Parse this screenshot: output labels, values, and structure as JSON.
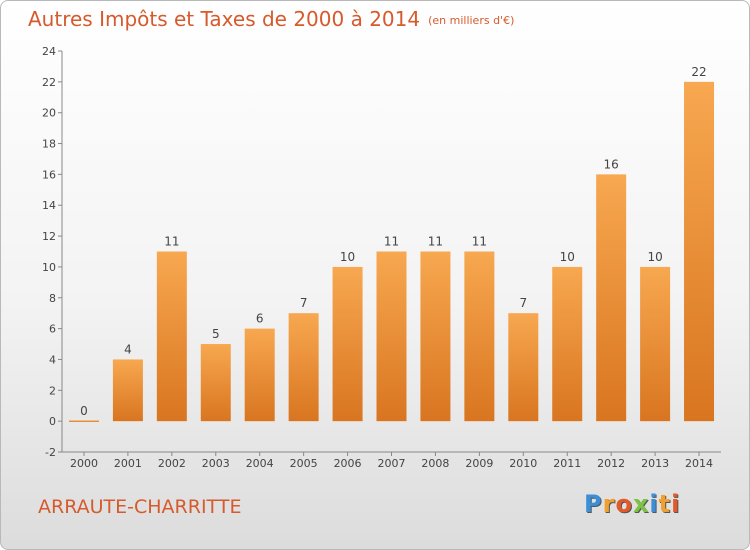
{
  "header": {
    "title": "Autres Impôts et Taxes de 2000 à 2014",
    "unit": "(en milliers d'€)"
  },
  "footer": {
    "commune": "ARRAUTE-CHARRITTE",
    "logo_letters": [
      {
        "char": "P",
        "color": "#3a8fd8"
      },
      {
        "char": "r",
        "color": "#f0a030"
      },
      {
        "char": "o",
        "color": "#e25a2a"
      },
      {
        "char": "x",
        "color": "#7dc242"
      },
      {
        "char": "i",
        "color": "#3a8fd8"
      },
      {
        "char": "t",
        "color": "#f0a030"
      },
      {
        "char": "i",
        "color": "#e25a2a"
      }
    ]
  },
  "colors": {
    "accent": "#d65a2c",
    "bar_light": "#f7a850",
    "bar_dark": "#d97520"
  },
  "chart_data": {
    "type": "bar",
    "categories": [
      "2000",
      "2001",
      "2002",
      "2003",
      "2004",
      "2005",
      "2006",
      "2007",
      "2008",
      "2009",
      "2010",
      "2011",
      "2012",
      "2013",
      "2014"
    ],
    "values": [
      0,
      4,
      11,
      5,
      6,
      7,
      10,
      11,
      11,
      11,
      7,
      10,
      16,
      10,
      22
    ],
    "ylim": [
      -2,
      24
    ],
    "yticks": [
      -2,
      0,
      2,
      4,
      6,
      8,
      10,
      12,
      14,
      16,
      18,
      20,
      22,
      24
    ],
    "grid": false
  }
}
